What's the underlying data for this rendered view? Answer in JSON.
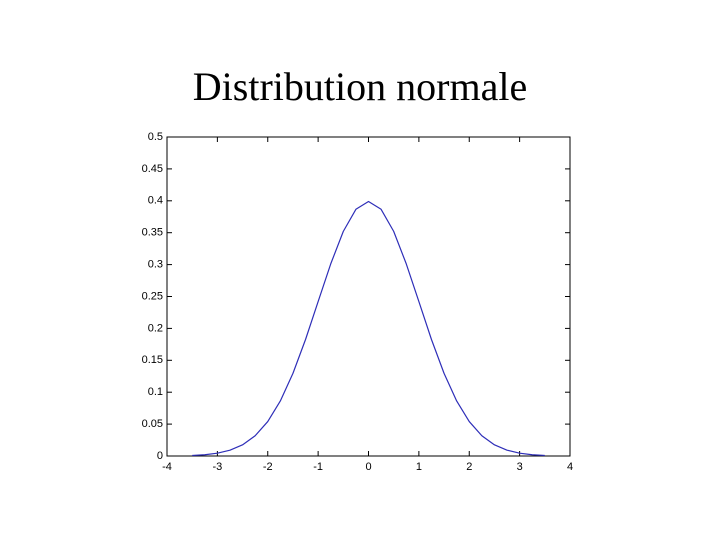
{
  "chart_data": {
    "type": "line",
    "title": "Distribution normale",
    "x": [
      -3.5,
      -3.25,
      -3,
      -2.75,
      -2.5,
      -2.25,
      -2,
      -1.75,
      -1.5,
      -1.25,
      -1,
      -0.75,
      -0.5,
      -0.25,
      0,
      0.25,
      0.5,
      0.75,
      1,
      1.25,
      1.5,
      1.75,
      2,
      2.25,
      2.5,
      2.75,
      3,
      3.25,
      3.5
    ],
    "values": [
      0.0009,
      0.002,
      0.0044,
      0.0091,
      0.0175,
      0.0317,
      0.054,
      0.0863,
      0.1295,
      0.1826,
      0.242,
      0.3011,
      0.3521,
      0.3867,
      0.3989,
      0.3867,
      0.3521,
      0.3011,
      0.242,
      0.1826,
      0.1295,
      0.0863,
      0.054,
      0.0317,
      0.0175,
      0.0091,
      0.0044,
      0.002,
      0.0009
    ],
    "color": "#2e2eb8",
    "xlim": [
      -4,
      4
    ],
    "xticks": [
      -4,
      -3,
      -2,
      -1,
      0,
      1,
      2,
      3,
      4
    ],
    "ylim": [
      0,
      0.5
    ],
    "yticks": [
      0,
      0.05,
      0.1,
      0.15,
      0.2,
      0.25,
      0.3,
      0.35,
      0.4,
      0.45,
      0.5
    ]
  }
}
